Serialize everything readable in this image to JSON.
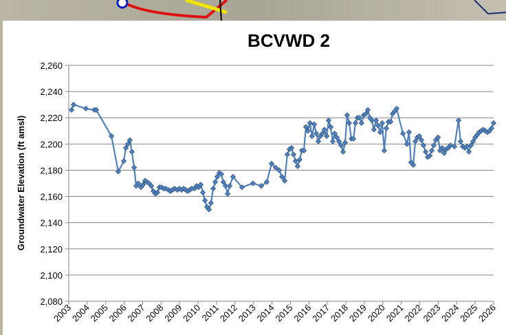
{
  "chart_data": {
    "type": "line",
    "title": "BCVWD 2",
    "y_label": "Groundwater Elevation (ft amsl)",
    "x": [
      2003.15,
      2003.26,
      2003.93,
      2004.38,
      2004.49,
      2005.31,
      2005.68,
      2005.98,
      2006.09,
      2006.2,
      2006.31,
      2006.42,
      2006.54,
      2006.65,
      2006.76,
      2006.91,
      2007.02,
      2007.13,
      2007.24,
      2007.35,
      2007.47,
      2007.58,
      2007.69,
      2007.8,
      2007.91,
      2008.02,
      2008.14,
      2008.25,
      2008.4,
      2008.51,
      2008.62,
      2008.73,
      2008.88,
      2008.99,
      2009.1,
      2009.22,
      2009.33,
      2009.44,
      2009.55,
      2009.66,
      2009.81,
      2009.92,
      2010.03,
      2010.15,
      2010.26,
      2010.37,
      2010.48,
      2010.59,
      2010.7,
      2010.82,
      2010.93,
      2011.04,
      2011.15,
      2011.26,
      2011.37,
      2011.49,
      2011.6,
      2011.71,
      2011.89,
      2012.38,
      2012.97,
      2013.42,
      2013.72,
      2013.98,
      2014.2,
      2014.39,
      2014.54,
      2014.69,
      2014.83,
      2014.95,
      2015.06,
      2015.17,
      2015.28,
      2015.39,
      2015.5,
      2015.62,
      2015.73,
      2015.84,
      2015.95,
      2016.06,
      2016.17,
      2016.29,
      2016.4,
      2016.51,
      2016.62,
      2016.73,
      2016.84,
      2016.96,
      2017.07,
      2017.18,
      2017.29,
      2017.4,
      2017.51,
      2017.63,
      2017.74,
      2017.85,
      2017.96,
      2018.07,
      2018.18,
      2018.3,
      2018.41,
      2018.52,
      2018.63,
      2018.74,
      2018.85,
      2018.97,
      2019.08,
      2019.19,
      2019.3,
      2019.41,
      2019.52,
      2019.64,
      2019.75,
      2019.86,
      2019.97,
      2020.08,
      2020.19,
      2020.31,
      2020.42,
      2020.53,
      2020.64,
      2020.75,
      2021.09,
      2021.31,
      2021.42,
      2021.53,
      2021.65,
      2021.76,
      2021.87,
      2021.98,
      2022.09,
      2022.2,
      2022.32,
      2022.43,
      2022.54,
      2022.65,
      2022.76,
      2022.87,
      2022.99,
      2023.1,
      2023.21,
      2023.32,
      2023.43,
      2023.54,
      2023.66,
      2023.88,
      2024.1,
      2024.21,
      2024.33,
      2024.44,
      2024.55,
      2024.66,
      2024.77,
      2024.89,
      2025.0,
      2025.11,
      2025.22,
      2025.33,
      2025.44,
      2025.55,
      2025.66,
      2025.78,
      2025.89,
      2026.0
    ],
    "series": [
      {
        "name": "BCVWD 2",
        "color": "#4f81bd",
        "values": [
          2226,
          2230,
          2227,
          2226,
          2226,
          2206,
          2179,
          2187,
          2197,
          2200,
          2203,
          2194,
          2182,
          2168,
          2170,
          2167,
          2169,
          2172,
          2171,
          2170,
          2168,
          2164,
          2162,
          2163,
          2167,
          2167,
          2166,
          2166,
          2165,
          2164,
          2165,
          2166,
          2165,
          2166,
          2165,
          2166,
          2165,
          2164,
          2165,
          2166,
          2166,
          2168,
          2167,
          2169,
          2163,
          2157,
          2152,
          2150,
          2155,
          2166,
          2171,
          2175,
          2178,
          2177,
          2171,
          2168,
          2162,
          2168,
          2175,
          2167,
          2170,
          2168,
          2171,
          2185,
          2182,
          2180,
          2175,
          2172,
          2192,
          2196,
          2197,
          2192,
          2187,
          2183,
          2188,
          2195,
          2195,
          2213,
          2210,
          2216,
          2206,
          2215,
          2208,
          2202,
          2206,
          2208,
          2211,
          2206,
          2218,
          2213,
          2202,
          2208,
          2205,
          2202,
          2199,
          2194,
          2201,
          2222,
          2216,
          2204,
          2204,
          2216,
          2220,
          2220,
          2216,
          2222,
          2223,
          2226,
          2220,
          2218,
          2211,
          2218,
          2214,
          2209,
          2216,
          2195,
          2212,
          2217,
          2217,
          2223,
          2225,
          2227,
          2208,
          2200,
          2209,
          2186,
          2184,
          2202,
          2205,
          2206,
          2203,
          2199,
          2194,
          2190,
          2191,
          2195,
          2199,
          2203,
          2205,
          2195,
          2197,
          2193,
          2196,
          2197,
          2199,
          2198,
          2218,
          2202,
          2198,
          2197,
          2198,
          2194,
          2199,
          2202,
          2205,
          2207,
          2209,
          2210,
          2211,
          2210,
          2209,
          2210,
          2212,
          2216
        ]
      }
    ],
    "xlim": [
      2003,
      2026
    ],
    "xticks": [
      2003,
      2004,
      2005,
      2006,
      2007,
      2008,
      2009,
      2010,
      2011,
      2012,
      2013,
      2014,
      2015,
      2016,
      2017,
      2018,
      2019,
      2020,
      2021,
      2022,
      2023,
      2024,
      2025,
      2026
    ],
    "ylim": [
      2080,
      2260
    ],
    "yticks": [
      {
        "value": 2080,
        "label": "2,080"
      },
      {
        "value": 2100,
        "label": "2,100"
      },
      {
        "value": 2120,
        "label": "2,120"
      },
      {
        "value": 2140,
        "label": "2,140"
      },
      {
        "value": 2160,
        "label": "2,160"
      },
      {
        "value": 2180,
        "label": "2,180"
      },
      {
        "value": 2200,
        "label": "2,200"
      },
      {
        "value": 2220,
        "label": "2,220"
      },
      {
        "value": 2240,
        "label": "2,240"
      },
      {
        "value": 2260,
        "label": "2,260"
      }
    ],
    "grid": true
  }
}
